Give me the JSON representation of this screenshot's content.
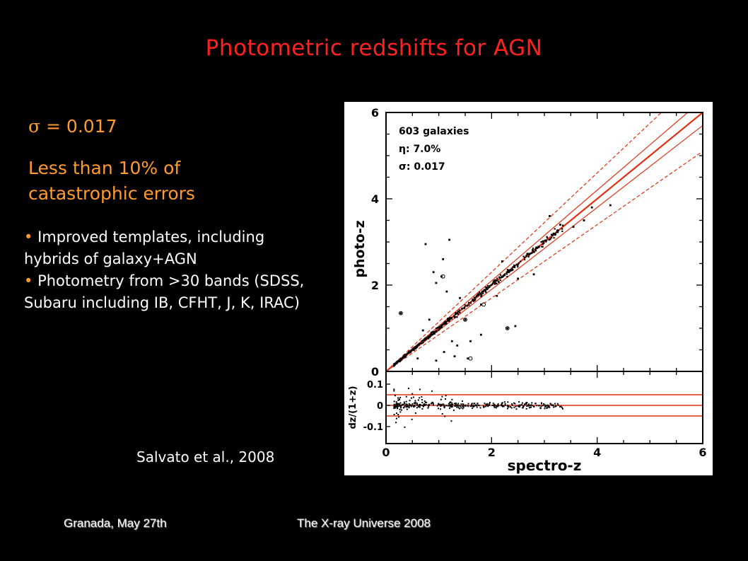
{
  "slide": {
    "title": "Photometric redshifts for AGN",
    "sigma_symbol": "σ",
    "sigma_text": " = 0.017",
    "less_than_line1": "Less than 10% of",
    "less_than_line2": "catastrophic errors",
    "bullets": [
      "Improved templates, including hybrids of galaxy+AGN",
      "Photometry from >30 bands (SDSS, Subaru including IB, CFHT, J, K, IRAC)"
    ],
    "citation": "Salvato et al., 2008",
    "footer_left": "Granada, May 27th",
    "footer_center": "The X-ray Universe 2008"
  },
  "colors": {
    "title": "#ff2020",
    "accent_orange": "#ff9a2e",
    "fit_line": "#e03010",
    "background": "#000000"
  },
  "chart_data": [
    {
      "type": "scatter",
      "panel": "main",
      "xlabel": "",
      "ylabel": "photo-z",
      "xlim": [
        0,
        6
      ],
      "ylim": [
        0,
        6
      ],
      "xticks": [
        0,
        2,
        4,
        6
      ],
      "yticks": [
        0,
        2,
        4,
        6
      ],
      "legend_lines": [
        "603 galaxies",
        "η:    7.0%",
        "σ:   0.017"
      ],
      "reference_lines": [
        {
          "name": "1:1",
          "slope": 1.0
        },
        {
          "name": "inner upper",
          "slope": 1.05
        },
        {
          "name": "inner lower",
          "slope": 0.95
        },
        {
          "name": "outer upper",
          "slope": 1.15
        },
        {
          "name": "outer lower",
          "slope": 0.85
        }
      ],
      "outlier_points": [
        [
          0.28,
          1.35
        ],
        [
          0.75,
          2.95
        ],
        [
          0.82,
          1.2
        ],
        [
          0.9,
          2.3
        ],
        [
          0.95,
          2.05
        ],
        [
          1.05,
          2.2
        ],
        [
          1.08,
          2.6
        ],
        [
          1.2,
          3.05
        ],
        [
          1.15,
          1.85
        ],
        [
          1.05,
          1.05
        ],
        [
          1.25,
          0.7
        ],
        [
          1.35,
          0.6
        ],
        [
          1.55,
          0.3
        ],
        [
          1.6,
          0.7
        ],
        [
          1.8,
          0.85
        ],
        [
          1.5,
          1.2
        ],
        [
          1.8,
          1.55
        ],
        [
          2.1,
          1.75
        ],
        [
          2.3,
          1.0
        ],
        [
          2.45,
          1.05
        ],
        [
          2.8,
          2.25
        ],
        [
          3.1,
          3.6
        ],
        [
          3.3,
          3.4
        ],
        [
          3.55,
          3.35
        ],
        [
          3.9,
          3.8
        ],
        [
          4.25,
          3.85
        ],
        [
          3.75,
          3.5
        ],
        [
          2.5,
          2.15
        ],
        [
          0.6,
          0.3
        ],
        [
          0.95,
          0.25
        ],
        [
          1.1,
          0.45
        ],
        [
          1.3,
          0.35
        ],
        [
          0.7,
          0.95
        ],
        [
          1.4,
          1.7
        ],
        [
          2.2,
          2.55
        ]
      ]
    },
    {
      "type": "scatter",
      "panel": "residual",
      "xlabel": "spectro-z",
      "ylabel": "dz/(1+z)",
      "xlim": [
        0,
        6
      ],
      "ylim": [
        -0.18,
        0.16
      ],
      "xticks": [
        0,
        2,
        4,
        6
      ],
      "yticks": [
        0.1,
        0,
        -0.1
      ],
      "horizontal_lines": [
        0.05,
        0,
        -0.05
      ]
    }
  ]
}
